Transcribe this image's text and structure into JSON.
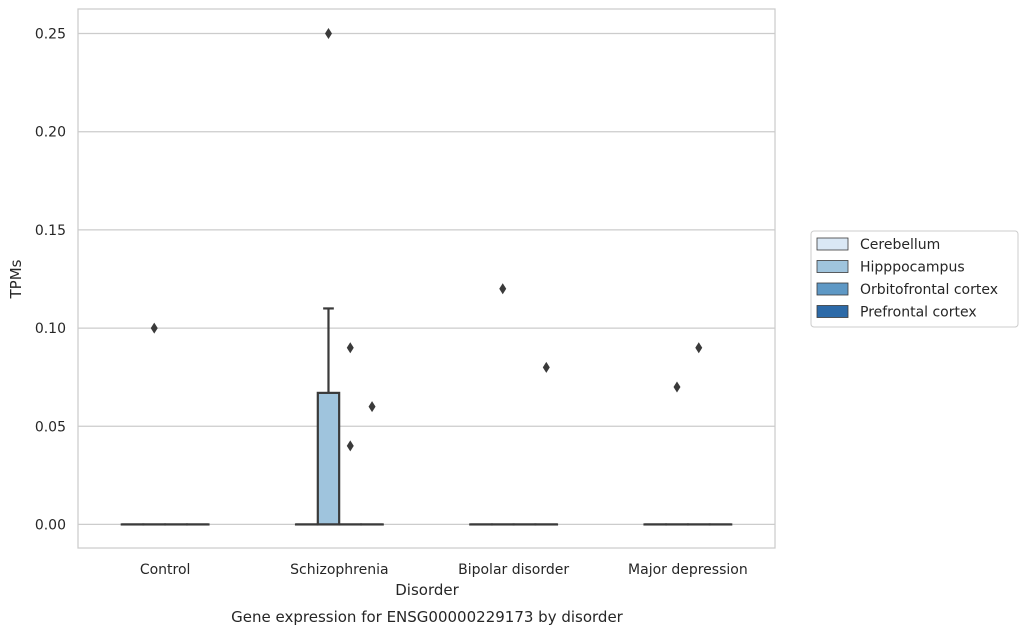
{
  "chart_data": {
    "type": "box",
    "title": "",
    "xlabel": "Disorder",
    "ylabel": "TPMs",
    "caption": "Gene expression for ENSG00000229173 by disorder",
    "categories": [
      "Control",
      "Schizophrenia",
      "Bipolar disorder",
      "Major depression"
    ],
    "ylim": [
      -0.012,
      0.2625
    ],
    "yticks": [
      0.0,
      0.05,
      0.1,
      0.15,
      0.2,
      0.25
    ],
    "ytick_labels": [
      "0.00",
      "0.05",
      "0.10",
      "0.15",
      "0.20",
      "0.25"
    ],
    "grid": "horizontal",
    "legend_position": "right",
    "series": [
      {
        "name": "Cerebellum",
        "color": "#dae8f5",
        "boxes": [
          {
            "q1": 0,
            "median": 0,
            "q3": 0,
            "whisker_low": 0,
            "whisker_high": 0,
            "outliers": []
          },
          {
            "q1": 0,
            "median": 0,
            "q3": 0,
            "whisker_low": 0,
            "whisker_high": 0,
            "outliers": []
          },
          {
            "q1": 0,
            "median": 0,
            "q3": 0,
            "whisker_low": 0,
            "whisker_high": 0,
            "outliers": []
          },
          {
            "q1": 0,
            "median": 0,
            "q3": 0,
            "whisker_low": 0,
            "whisker_high": 0,
            "outliers": []
          }
        ]
      },
      {
        "name": "Hipppocampus",
        "color": "#9fc4dd",
        "boxes": [
          {
            "q1": 0,
            "median": 0,
            "q3": 0,
            "whisker_low": 0,
            "whisker_high": 0,
            "outliers": [
              0.1
            ]
          },
          {
            "q1": 0,
            "median": 0,
            "q3": 0.067,
            "whisker_low": 0,
            "whisker_high": 0.11,
            "outliers": [
              0.25
            ]
          },
          {
            "q1": 0,
            "median": 0,
            "q3": 0,
            "whisker_low": 0,
            "whisker_high": 0,
            "outliers": [
              0.12
            ]
          },
          {
            "q1": 0,
            "median": 0,
            "q3": 0,
            "whisker_low": 0,
            "whisker_high": 0,
            "outliers": [
              0.07
            ]
          }
        ]
      },
      {
        "name": "Orbitofrontal cortex",
        "color": "#5e98c5",
        "boxes": [
          {
            "q1": 0,
            "median": 0,
            "q3": 0,
            "whisker_low": 0,
            "whisker_high": 0,
            "outliers": []
          },
          {
            "q1": 0,
            "median": 0,
            "q3": 0,
            "whisker_low": 0,
            "whisker_high": 0,
            "outliers": [
              0.09,
              0.04
            ]
          },
          {
            "q1": 0,
            "median": 0,
            "q3": 0,
            "whisker_low": 0,
            "whisker_high": 0,
            "outliers": []
          },
          {
            "q1": 0,
            "median": 0,
            "q3": 0,
            "whisker_low": 0,
            "whisker_high": 0,
            "outliers": [
              0.09
            ]
          }
        ]
      },
      {
        "name": "Prefrontal cortex",
        "color": "#2c6aa8",
        "boxes": [
          {
            "q1": 0,
            "median": 0,
            "q3": 0,
            "whisker_low": 0,
            "whisker_high": 0,
            "outliers": []
          },
          {
            "q1": 0,
            "median": 0,
            "q3": 0,
            "whisker_low": 0,
            "whisker_high": 0,
            "outliers": [
              0.06
            ]
          },
          {
            "q1": 0,
            "median": 0,
            "q3": 0,
            "whisker_low": 0,
            "whisker_high": 0,
            "outliers": [
              0.08
            ]
          },
          {
            "q1": 0,
            "median": 0,
            "q3": 0,
            "whisker_low": 0,
            "whisker_high": 0,
            "outliers": []
          }
        ]
      }
    ]
  }
}
